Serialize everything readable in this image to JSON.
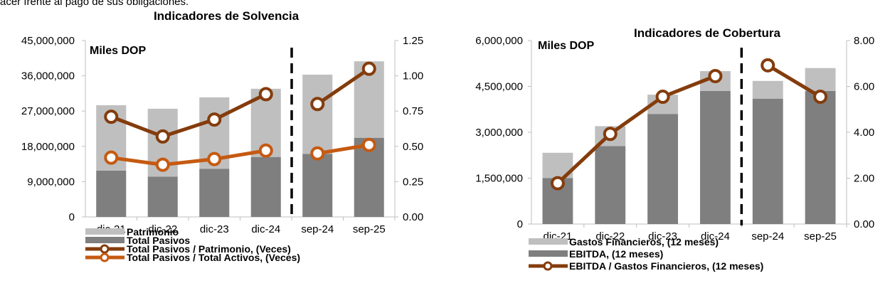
{
  "intro_text": "acer frente al pago de sus obligaciones.",
  "chart_data": [
    {
      "type": "bar",
      "title": "Indicadores de Solvencia",
      "unit_label": "Miles DOP",
      "categories": [
        "dic-21",
        "dic-22",
        "dic-23",
        "dic-24",
        "sep-24",
        "sep-25"
      ],
      "stacked": true,
      "y_left": {
        "min": 0,
        "max": 45000000,
        "ticks": [
          "0",
          "9,000,000",
          "18,000,000",
          "27,000,000",
          "36,000,000",
          "45,000,000"
        ]
      },
      "y_right": {
        "min": 0,
        "max": 1.25,
        "ticks": [
          "0.00",
          "0.25",
          "0.50",
          "0.75",
          "1.00",
          "1.25"
        ]
      },
      "bar_series": [
        {
          "name": "Total Pasivos",
          "color": "#7f7f7f",
          "values": [
            11800000,
            10300000,
            12300000,
            15300000,
            16100000,
            20200000
          ]
        },
        {
          "name": "Patrimonio",
          "color": "#bfbfbf",
          "values": [
            16700000,
            17300000,
            18200000,
            17400000,
            20200000,
            19500000
          ]
        }
      ],
      "line_series": [
        {
          "name": "Total Pasivos / Patrimonio, (Veces)",
          "color": "#843c0c",
          "values": [
            0.71,
            0.57,
            0.69,
            0.87,
            0.8,
            1.05
          ]
        },
        {
          "name": "Total Pasivos / Total Activos, (Veces)",
          "color": "#c55a11",
          "values": [
            0.42,
            0.37,
            0.41,
            0.47,
            0.45,
            0.51
          ]
        }
      ],
      "legend": [
        {
          "name": "Patrimonio",
          "kind": "bar",
          "color": "#bfbfbf"
        },
        {
          "name": "Total Pasivos",
          "kind": "bar",
          "color": "#7f7f7f"
        },
        {
          "name": "Total Pasivos / Patrimonio, (Veces)",
          "kind": "line",
          "color": "#843c0c"
        },
        {
          "name": "Total Pasivos / Total Activos, (Veces)",
          "kind": "line",
          "color": "#c55a11"
        }
      ],
      "legend_placement": "bottom",
      "grid": false,
      "separator_after_index": 3
    },
    {
      "type": "bar",
      "title": "Indicadores de Cobertura",
      "unit_label": "Miles DOP",
      "categories": [
        "dic-21",
        "dic-22",
        "dic-23",
        "dic-24",
        "sep-24",
        "sep-25"
      ],
      "stacked": true,
      "y_left": {
        "min": 0,
        "max": 6000000,
        "ticks": [
          "0",
          "1,500,000",
          "3,000,000",
          "4,500,000",
          "6,000,000"
        ]
      },
      "y_right": {
        "min": 0,
        "max": 8,
        "ticks": [
          "0.00",
          "2.00",
          "4.00",
          "6.00",
          "8.00"
        ]
      },
      "bar_series": [
        {
          "name": "EBITDA, (12 meses)",
          "color": "#7f7f7f",
          "values": [
            1500000,
            2550000,
            3600000,
            4350000,
            4100000,
            4350000
          ]
        },
        {
          "name": "Gastos Financieros, (12 meses)",
          "color": "#bfbfbf",
          "values": [
            830000,
            650000,
            630000,
            650000,
            580000,
            750000
          ]
        }
      ],
      "line_series": [
        {
          "name": "EBITDA / Gastos Financieros, (12 meses)",
          "color": "#843c0c",
          "values": [
            1.78,
            3.93,
            5.55,
            6.45,
            6.92,
            5.55
          ]
        }
      ],
      "legend": [
        {
          "name": "Gastos Financieros, (12 meses)",
          "kind": "bar",
          "color": "#bfbfbf"
        },
        {
          "name": "EBITDA, (12 meses)",
          "kind": "bar",
          "color": "#7f7f7f"
        },
        {
          "name": "EBITDA / Gastos Financieros, (12 meses)",
          "kind": "line",
          "color": "#843c0c"
        }
      ],
      "legend_placement": "bottom",
      "grid": false,
      "separator_after_index": 3
    }
  ]
}
